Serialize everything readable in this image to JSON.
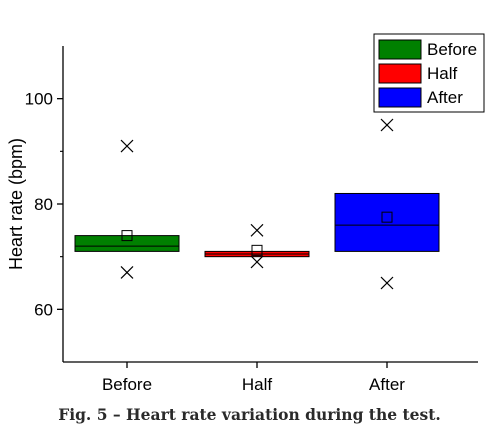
{
  "chart_data": {
    "type": "box",
    "ylabel": "Heart rate (bpm)",
    "xlabel": "",
    "ylim": [
      50,
      110
    ],
    "yticks": [
      60,
      80,
      100
    ],
    "yminor": [
      70,
      90
    ],
    "categories": [
      "Before",
      "Half",
      "After"
    ],
    "series": [
      {
        "name": "Before",
        "color": "#008000",
        "q1": 71,
        "median": 72,
        "q3": 74,
        "mean": 74,
        "whisker_low": 71,
        "whisker_high": 74,
        "outliers": [
          91,
          67
        ]
      },
      {
        "name": "Half",
        "color": "#ff0000",
        "q1": 70,
        "median": 70.5,
        "q3": 71,
        "mean": 71.2,
        "whisker_low": 70,
        "whisker_high": 71,
        "outliers": [
          75,
          69
        ]
      },
      {
        "name": "After",
        "color": "#0000ff",
        "q1": 71,
        "median": 76,
        "q3": 82,
        "mean": 77.5,
        "whisker_low": 71,
        "whisker_high": 82,
        "outliers": [
          95,
          65
        ]
      }
    ],
    "legend": {
      "placement": "top-right",
      "entries": [
        "Before",
        "Half",
        "After"
      ]
    }
  },
  "caption": "Fig. 5 – Heart rate variation during the test."
}
